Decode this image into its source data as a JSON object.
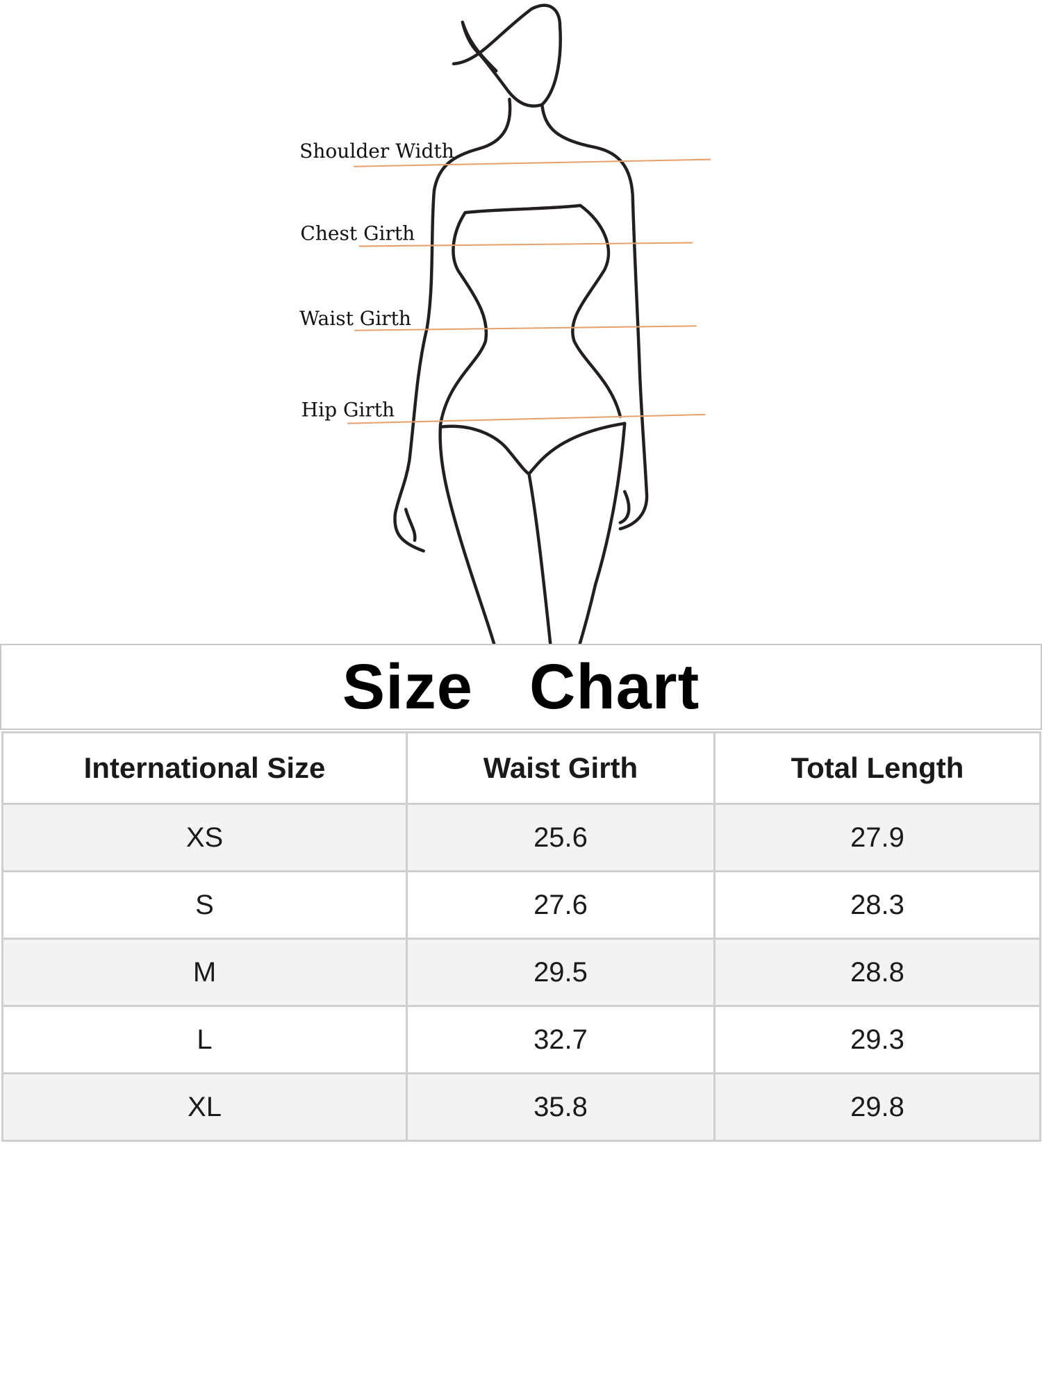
{
  "figure": {
    "labels": [
      "Shoulder Width",
      "Chest Girth",
      "Waist Girth",
      "Hip Girth"
    ],
    "line_color": "#e8a06a"
  },
  "title": "Size  Chart",
  "table": {
    "headers": [
      "International Size",
      "Waist Girth",
      "Total Length"
    ],
    "rows": [
      [
        "XS",
        "25.6",
        "27.9"
      ],
      [
        "S",
        "27.6",
        "28.3"
      ],
      [
        "M",
        "29.5",
        "28.8"
      ],
      [
        "L",
        "32.7",
        "29.3"
      ],
      [
        "XL",
        "35.8",
        "29.8"
      ]
    ]
  }
}
